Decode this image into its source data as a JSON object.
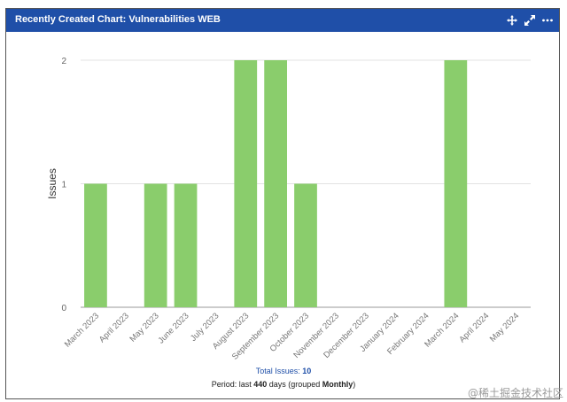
{
  "panel": {
    "title": "Recently Created Chart: Vulnerabilities WEB",
    "icons": [
      "move-icon",
      "expand-icon",
      "more-icon"
    ]
  },
  "chart_data": {
    "type": "bar",
    "categories": [
      "March 2023",
      "April 2023",
      "May 2023",
      "June 2023",
      "July 2023",
      "August 2023",
      "September 2023",
      "October 2023",
      "November 2023",
      "December 2023",
      "January 2024",
      "February 2024",
      "March 2024",
      "April 2024",
      "May 2024"
    ],
    "values": [
      1,
      0,
      1,
      1,
      0,
      2,
      2,
      1,
      0,
      0,
      0,
      0,
      2,
      0,
      0
    ],
    "ylabel": "Issues",
    "ylim": [
      0,
      2
    ],
    "yticks": [
      "0",
      "1",
      "2"
    ],
    "bar_color": "#8acd6c",
    "grid": true
  },
  "footer": {
    "total_label": "Total Issues: ",
    "total_value": "10",
    "period_prefix": "Period: last ",
    "period_days": "440",
    "period_mid": " days (grouped ",
    "period_group": "Monthly",
    "period_suffix": ")"
  },
  "watermark": "@稀土掘金技术社区",
  "colors": {
    "header": "#1f4fa8",
    "bar": "#8acd6c",
    "link": "#1f4fa8"
  }
}
